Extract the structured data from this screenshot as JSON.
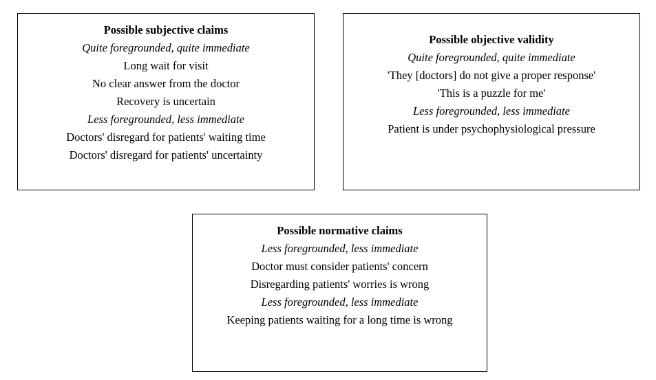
{
  "subjective": {
    "title": "Possible subjective  claims",
    "lines": [
      "Quite foregrounded, quite immediate",
      "Long wait  for visit",
      "No  clear answer from the doctor",
      "Recovery is  uncertain",
      "Less foregrounded, less immediate",
      "Doctors'  disregard   for patients' waiting time",
      "Doctors'  disregard   for patients' uncertainty"
    ]
  },
  "objective": {
    "title": "Possible objective validity",
    "lines": [
      "Quite foregrounded, quite immediate",
      "'They [doctors]  do not give  a proper response'",
      "'This is  a puzzle for me'",
      "Less foregrounded, less immediate",
      "Patient is  under psychophysiological  pressure"
    ]
  },
  "normative": {
    "title": "Possible normative claims",
    "lines": [
      "Less foregrounded, less immediate",
      "Doctor must consider patients' concern",
      "Disregarding patients' worries is wrong",
      "Less foregrounded, less immediate",
      "Keeping patients waiting for a long time is wrong"
    ]
  }
}
